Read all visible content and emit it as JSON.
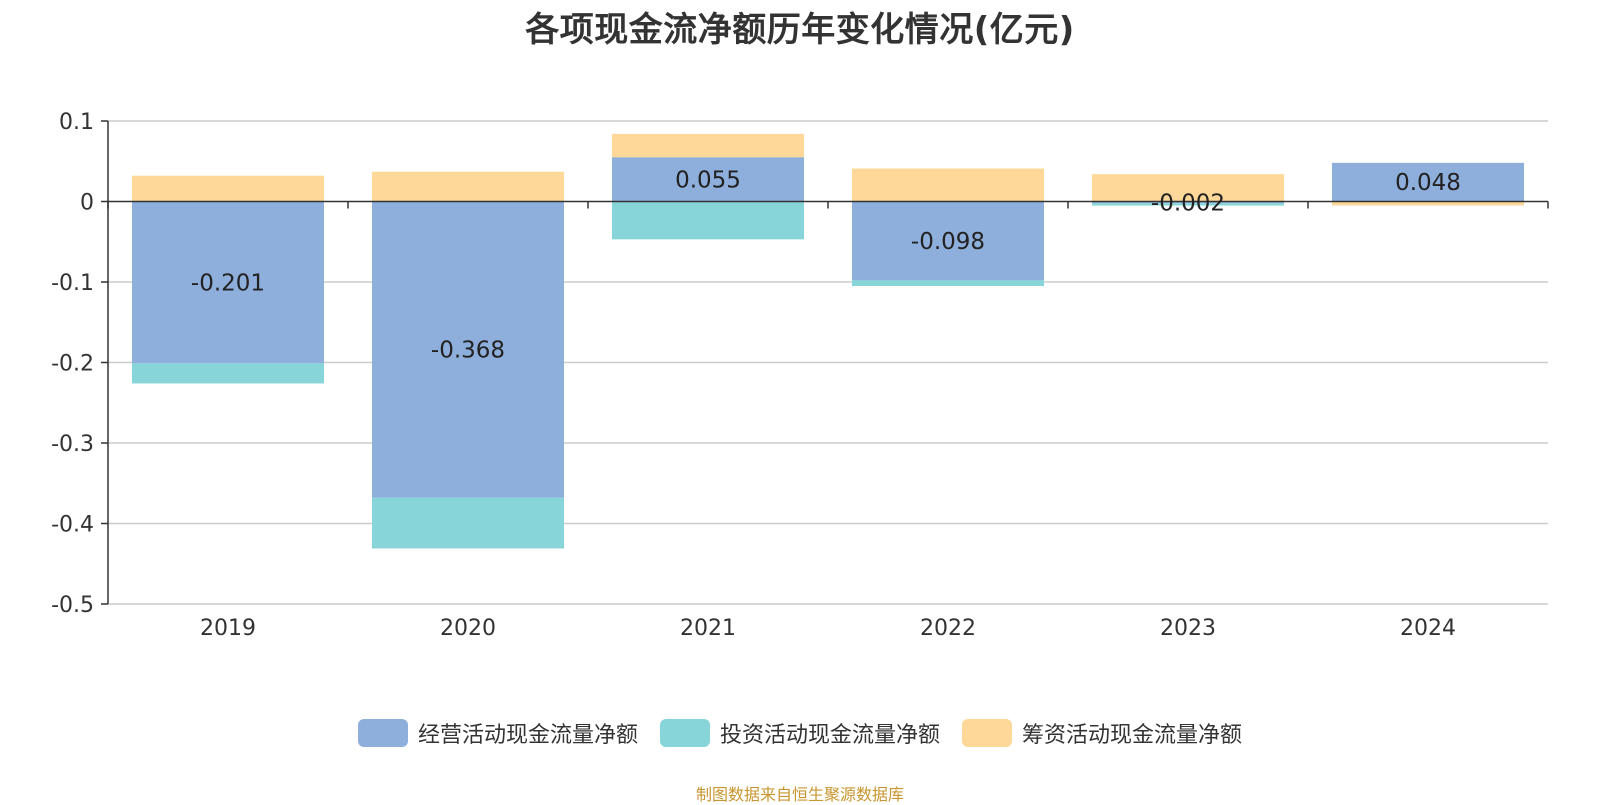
{
  "title": "各项现金流净额历年变化情况(亿元)",
  "source": "制图数据来自恒生聚源数据库",
  "colors": {
    "operating": "#8eaedb",
    "investing": "#87d5d8",
    "financing": "#fed899"
  },
  "chart_data": {
    "type": "bar",
    "stacked": true,
    "categories": [
      "2019",
      "2020",
      "2021",
      "2022",
      "2023",
      "2024"
    ],
    "ylim": [
      -0.5,
      0.1
    ],
    "yticks": [
      "0.1",
      "0",
      "-0.1",
      "-0.2",
      "-0.3",
      "-0.4",
      "-0.5"
    ],
    "grid": true,
    "legend_position": "bottom",
    "series": [
      {
        "name": "经营活动现金流量净额",
        "values": [
          -0.201,
          -0.368,
          0.055,
          -0.098,
          -0.002,
          0.048
        ],
        "labels": [
          "-0.201",
          "-0.368",
          "0.055",
          "-0.098",
          "-0.002",
          "0.048"
        ]
      },
      {
        "name": "投资活动现金流量净额",
        "values": [
          -0.025,
          -0.063,
          -0.047,
          -0.007,
          -0.003,
          0.0
        ]
      },
      {
        "name": "筹资活动现金流量净额",
        "values": [
          0.032,
          0.037,
          0.029,
          0.041,
          0.034,
          -0.005
        ]
      }
    ]
  }
}
